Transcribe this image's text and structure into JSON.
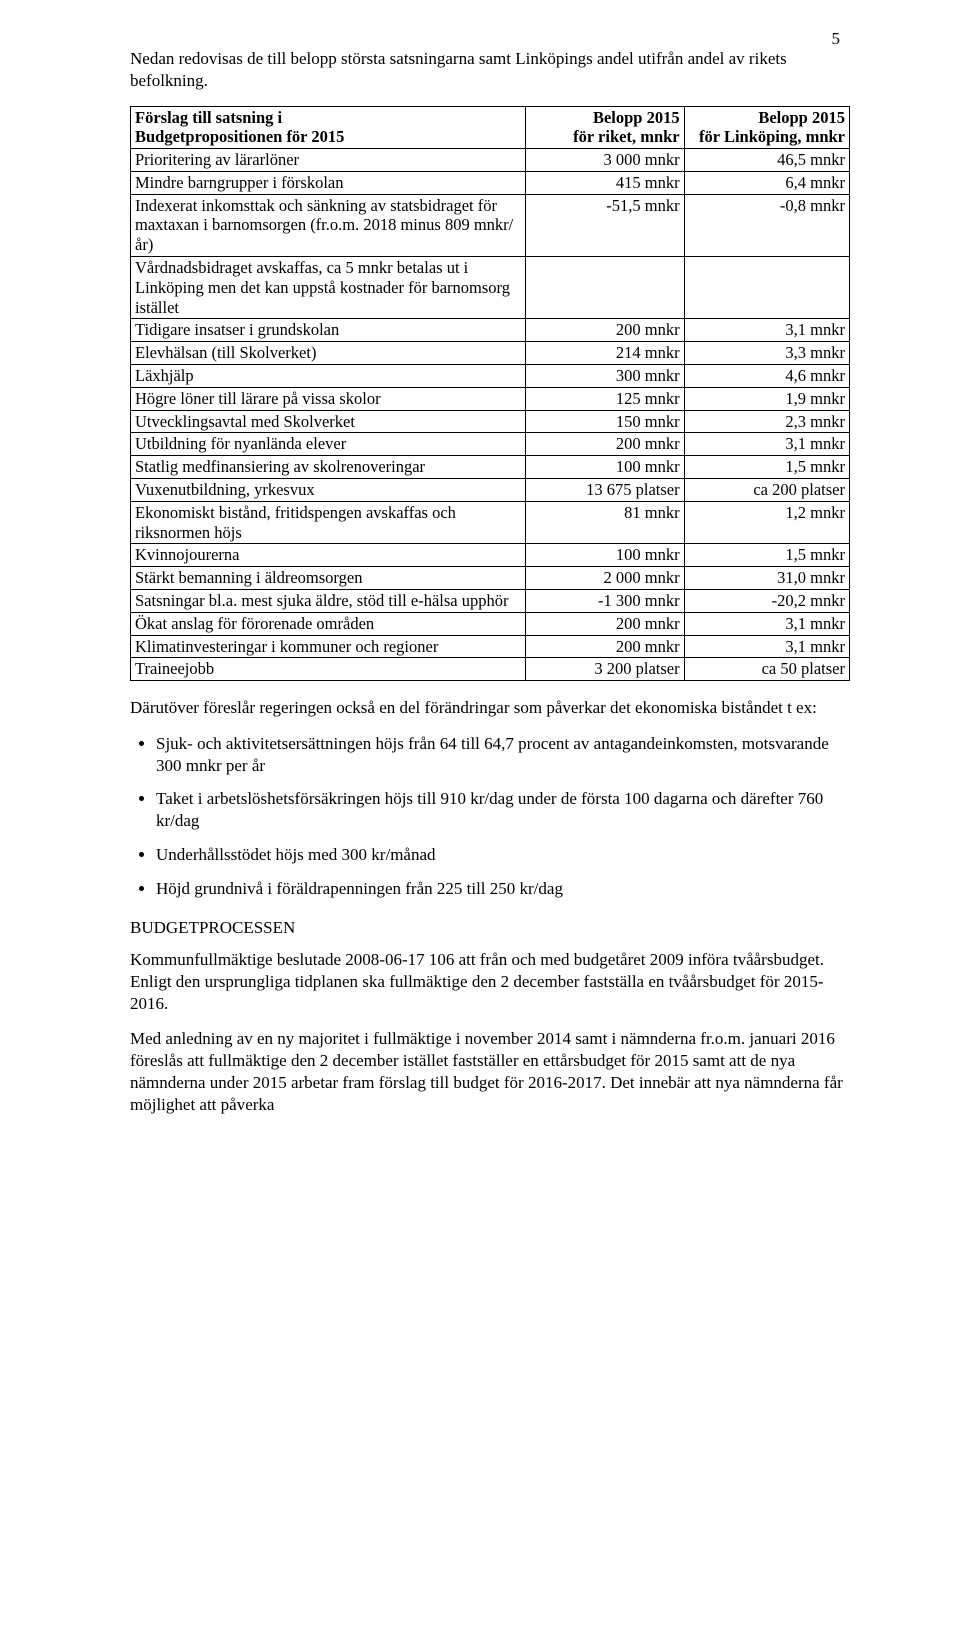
{
  "pageNumber": "5",
  "intro": "Nedan redovisas de till belopp största satsningarna samt Linköpings andel utifrån andel av rikets befolkning.",
  "table": {
    "headers": {
      "c1a": "Förslag till satsning i",
      "c1b": "Budgetpropositionen för 2015",
      "c2a": "Belopp 2015",
      "c2b": "för riket, mnkr",
      "c3a": "Belopp 2015",
      "c3b": "för Linköping, mnkr"
    },
    "rows": [
      {
        "label": "Prioritering av lärarlöner",
        "v1": "3 000 mnkr",
        "v2": "46,5 mnkr"
      },
      {
        "label": "Mindre barngrupper i förskolan",
        "v1": "415 mnkr",
        "v2": "6,4 mnkr"
      },
      {
        "label": "Indexerat inkomsttak och sänkning av statsbidraget för maxtaxan i barnomsorgen (fr.o.m. 2018 minus 809 mnkr/år)",
        "v1": "-51,5 mnkr",
        "v2": "-0,8 mnkr"
      },
      {
        "label": "Vårdnadsbidraget avskaffas, ca 5 mnkr betalas ut i Linköping men det kan uppstå kostnader för barnomsorg istället",
        "v1": "",
        "v2": ""
      },
      {
        "label": "Tidigare insatser i grundskolan",
        "v1": "200 mnkr",
        "v2": "3,1 mnkr"
      },
      {
        "label": "Elevhälsan (till Skolverket)",
        "v1": "214 mnkr",
        "v2": "3,3 mnkr"
      },
      {
        "label": "Läxhjälp",
        "v1": "300 mnkr",
        "v2": "4,6 mnkr"
      },
      {
        "label": "Högre löner till lärare på vissa skolor",
        "v1": "125 mnkr",
        "v2": "1,9 mnkr"
      },
      {
        "label": "Utvecklingsavtal med Skolverket",
        "v1": "150 mnkr",
        "v2": "2,3 mnkr"
      },
      {
        "label": "Utbildning för nyanlända elever",
        "v1": "200 mnkr",
        "v2": "3,1 mnkr"
      },
      {
        "label": "Statlig medfinansiering av skolrenoveringar",
        "v1": "100 mnkr",
        "v2": "1,5 mnkr"
      },
      {
        "label": "Vuxenutbildning, yrkesvux",
        "v1": "13 675 platser",
        "v2": "ca 200 platser"
      },
      {
        "label": "Ekonomiskt bistånd, fritidspengen avskaffas och riksnormen höjs",
        "v1": "81 mnkr",
        "v2": "1,2 mnkr"
      },
      {
        "label": "Kvinnojourerna",
        "v1": "100 mnkr",
        "v2": "1,5 mnkr"
      },
      {
        "label": "Stärkt bemanning i äldreomsorgen",
        "v1": "2 000 mnkr",
        "v2": "31,0 mnkr"
      },
      {
        "label": "Satsningar bl.a. mest sjuka äldre, stöd till e-hälsa upphör",
        "v1": "-1 300 mnkr",
        "v2": "-20,2 mnkr"
      },
      {
        "label": "Ökat anslag för förorenade områden",
        "v1": "200 mnkr",
        "v2": "3,1 mnkr"
      },
      {
        "label": "Klimatinvesteringar i kommuner och regioner",
        "v1": "200 mnkr",
        "v2": "3,1 mnkr"
      },
      {
        "label": "Traineejobb",
        "v1": "3 200 platser",
        "v2": "ca 50 platser"
      }
    ],
    "col_widths": [
      "55%",
      "22%",
      "23%"
    ]
  },
  "afterTable": "Därutöver föreslår regeringen också en del förändringar som påverkar det ekonomiska biståndet t ex:",
  "bullets": [
    "Sjuk- och aktivitetsersättningen höjs från 64 till 64,7 procent av antagandeinkomsten, motsvarande 300 mnkr per år",
    "Taket i arbetslöshetsförsäkringen höjs till 910 kr/dag under de första 100 dagarna och därefter 760 kr/dag",
    "Underhållsstödet höjs med 300 kr/månad",
    "Höjd grundnivå i föräldrapenningen från 225 till 250 kr/dag"
  ],
  "sectionHeading": "BUDGETPROCESSEN",
  "para1": "Kommunfullmäktige beslutade 2008-06-17 106 att från och med budgetåret 2009 införa tvåårsbudget. Enligt den ursprungliga tidplanen ska fullmäktige den 2 december fastställa en tvåårsbudget för 2015-2016.",
  "para2": "Med anledning av en ny majoritet i fullmäktige i november 2014 samt i nämnderna fr.o.m. januari 2016 föreslås att fullmäktige den 2 december istället fastställer en ettårsbudget för 2015 samt att de nya nämnderna under 2015 arbetar fram förslag till budget för 2016-2017. Det innebär att nya nämnderna får möjlighet att påverka"
}
